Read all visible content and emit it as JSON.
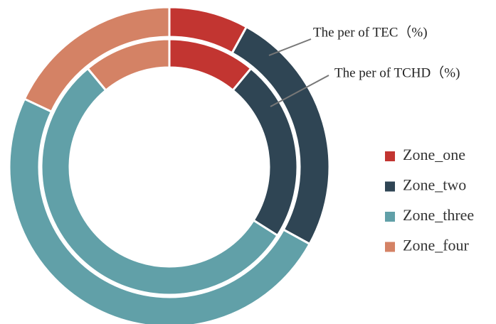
{
  "chart_data": {
    "type": "pie",
    "categories": [
      "Zone_one",
      "Zone_two",
      "Zone_three",
      "Zone_four"
    ],
    "colors": [
      "#c23531",
      "#2f4554",
      "#61a0a8",
      "#d48265"
    ],
    "series": [
      {
        "name": "The per of TEC（%)",
        "values": [
          8,
          25,
          49,
          18
        ]
      },
      {
        "name": "The per of TCHD（%)",
        "values": [
          11,
          23,
          55,
          11
        ]
      }
    ]
  }
}
